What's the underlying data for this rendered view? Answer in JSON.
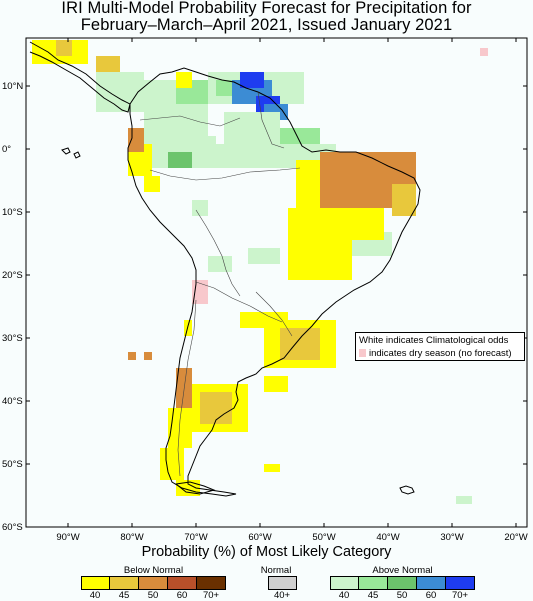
{
  "title": {
    "line1": "IRI Multi-Model Probability Forecast for Precipitation for",
    "line2": "February–March–April 2021, Issued January 2021"
  },
  "map": {
    "lat_ticks": [
      "10°N",
      "0°",
      "10°S",
      "20°S",
      "30°S",
      "40°S",
      "50°S",
      "60°S"
    ],
    "lon_ticks": [
      "90°W",
      "80°W",
      "70°W",
      "60°W",
      "50°W",
      "40°W",
      "30°W",
      "20°W"
    ],
    "note": {
      "line1": "White indicates Climatological odds",
      "line2": "indicates dry season (no forecast)",
      "dry_color": "#f8c8cc"
    },
    "regions": [
      {
        "name": "Caribbean Colombia–Venezuela",
        "category": "below",
        "level": 40
      },
      {
        "name": "Guyanas / Eastern Venezuela",
        "category": "above",
        "level": 70
      },
      {
        "name": "Amazon",
        "category": "above",
        "level": 40
      },
      {
        "name": "Northeast Brazil",
        "category": "below",
        "level": 50
      },
      {
        "name": "Central-Eastern Brazil",
        "category": "below",
        "level": 40
      },
      {
        "name": "Southern Brazil / Uruguay / NE Argentina",
        "category": "below",
        "level": 45
      },
      {
        "name": "Central Argentina",
        "category": "below",
        "level": 45
      },
      {
        "name": "Central Chile",
        "category": "below",
        "level": 50
      },
      {
        "name": "Patagonia",
        "category": "below",
        "level": 40
      },
      {
        "name": "Southern Chile",
        "category": "below",
        "level": 40
      }
    ]
  },
  "legend": {
    "heading": "Probability (%) of Most Likely Category",
    "below": {
      "title": "Below Normal",
      "colors": [
        "#ffff00",
        "#e8c83c",
        "#d88c3c",
        "#b8502a",
        "#6a3000"
      ],
      "ticks": [
        "40",
        "45",
        "50",
        "60",
        "70+"
      ]
    },
    "normal": {
      "title": "Normal",
      "color": "#d0d0d0",
      "tick": "40+"
    },
    "above": {
      "title": "Above Normal",
      "colors": [
        "#ccf4cc",
        "#99e899",
        "#6cc46c",
        "#3c8cd4",
        "#1e3cf0"
      ],
      "ticks": [
        "40",
        "45",
        "50",
        "60",
        "70+"
      ]
    }
  }
}
